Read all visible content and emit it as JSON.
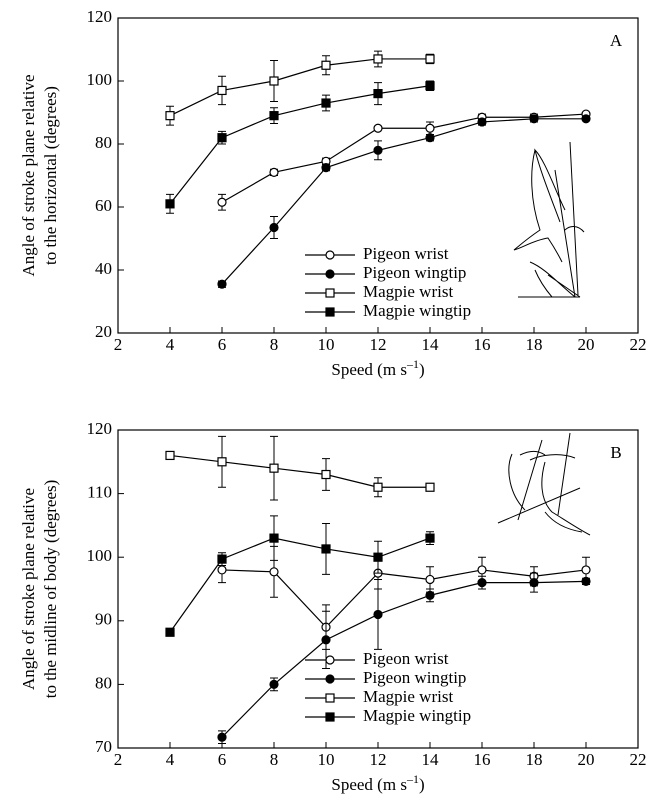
{
  "chart_data": [
    {
      "type": "line",
      "panel_label": "A",
      "ylabel": [
        "Angle of stroke plane relative",
        "to the horizontal (degrees)"
      ],
      "xlabel": "Speed (m s",
      "xlabel_sup": "–1",
      "xlabel_end": ")",
      "xlim": [
        2,
        22
      ],
      "xticks": [
        2,
        4,
        6,
        8,
        10,
        12,
        14,
        16,
        18,
        20,
        22
      ],
      "ylim": [
        20,
        120
      ],
      "yticks": [
        20,
        40,
        60,
        80,
        100,
        120
      ],
      "legend": "lower right",
      "series": [
        {
          "name": "Pigeon wrist",
          "color": "#000000",
          "marker": "circle",
          "filled": false,
          "x": [
            6,
            8,
            10,
            12,
            14,
            16,
            18,
            20
          ],
          "values": [
            61.5,
            71,
            74.5,
            85,
            85,
            88.5,
            88.5,
            89.5
          ],
          "errors": [
            2.5,
            1,
            1,
            0.5,
            2,
            1,
            1,
            0.5
          ]
        },
        {
          "name": "Pigeon wingtip",
          "color": "#000000",
          "marker": "circle",
          "filled": true,
          "x": [
            6,
            8,
            10,
            12,
            14,
            16,
            18,
            20
          ],
          "values": [
            35.5,
            53.5,
            72.5,
            78,
            82,
            87,
            88,
            88
          ],
          "errors": [
            1,
            3.5,
            1,
            3,
            1,
            1,
            1,
            0.5
          ]
        },
        {
          "name": "Magpie wrist",
          "color": "#000000",
          "marker": "square",
          "filled": false,
          "x": [
            4,
            6,
            8,
            10,
            12,
            14
          ],
          "values": [
            89,
            97,
            100,
            105,
            107,
            107
          ],
          "errors": [
            3,
            4.5,
            6.5,
            3,
            2.5,
            1.5
          ]
        },
        {
          "name": "Magpie wingtip",
          "color": "#000000",
          "marker": "square",
          "filled": true,
          "x": [
            4,
            6,
            8,
            10,
            12,
            14
          ],
          "values": [
            61,
            82,
            89,
            93,
            96,
            98.5
          ],
          "errors": [
            3,
            2,
            2.5,
            2.5,
            3.5,
            1.5
          ]
        }
      ]
    },
    {
      "type": "line",
      "panel_label": "B",
      "ylabel": [
        "Angle of stroke plane relative",
        "to the midline of body (degrees)"
      ],
      "xlabel": "Speed (m s",
      "xlabel_sup": "–1",
      "xlabel_end": ")",
      "xlim": [
        2,
        22
      ],
      "xticks": [
        2,
        4,
        6,
        8,
        10,
        12,
        14,
        16,
        18,
        20,
        22
      ],
      "ylim": [
        70,
        120
      ],
      "yticks": [
        70,
        80,
        90,
        100,
        110,
        120
      ],
      "legend": "lower right",
      "series": [
        {
          "name": "Pigeon wrist",
          "color": "#000000",
          "marker": "circle",
          "filled": false,
          "x": [
            6,
            8,
            10,
            12,
            14,
            16,
            18,
            20
          ],
          "values": [
            98,
            97.7,
            89,
            97.5,
            96.5,
            98,
            97,
            98
          ],
          "errors": [
            2,
            4,
            3.5,
            2.5,
            2,
            2,
            1.5,
            2
          ]
        },
        {
          "name": "Pigeon wingtip",
          "color": "#000000",
          "marker": "circle",
          "filled": true,
          "x": [
            6,
            8,
            10,
            12,
            14,
            16,
            18,
            20
          ],
          "values": [
            71.7,
            80,
            87,
            91,
            94,
            96,
            96,
            96.2
          ],
          "errors": [
            1,
            1,
            4.5,
            5.5,
            1,
            1,
            1.5,
            0.5
          ]
        },
        {
          "name": "Magpie wrist",
          "color": "#000000",
          "marker": "square",
          "filled": false,
          "x": [
            4,
            6,
            8,
            10,
            12,
            14
          ],
          "values": [
            116,
            115,
            114,
            113,
            111,
            111
          ],
          "errors": [
            0.5,
            4,
            5,
            2.5,
            1.5,
            0.3
          ]
        },
        {
          "name": "Magpie wingtip",
          "color": "#000000",
          "marker": "square",
          "filled": true,
          "x": [
            4,
            6,
            8,
            10,
            12,
            14
          ],
          "values": [
            88.2,
            99.7,
            103,
            101.3,
            100,
            103
          ],
          "errors": [
            0.5,
            1,
            3.5,
            4,
            2.5,
            1
          ]
        }
      ]
    }
  ]
}
